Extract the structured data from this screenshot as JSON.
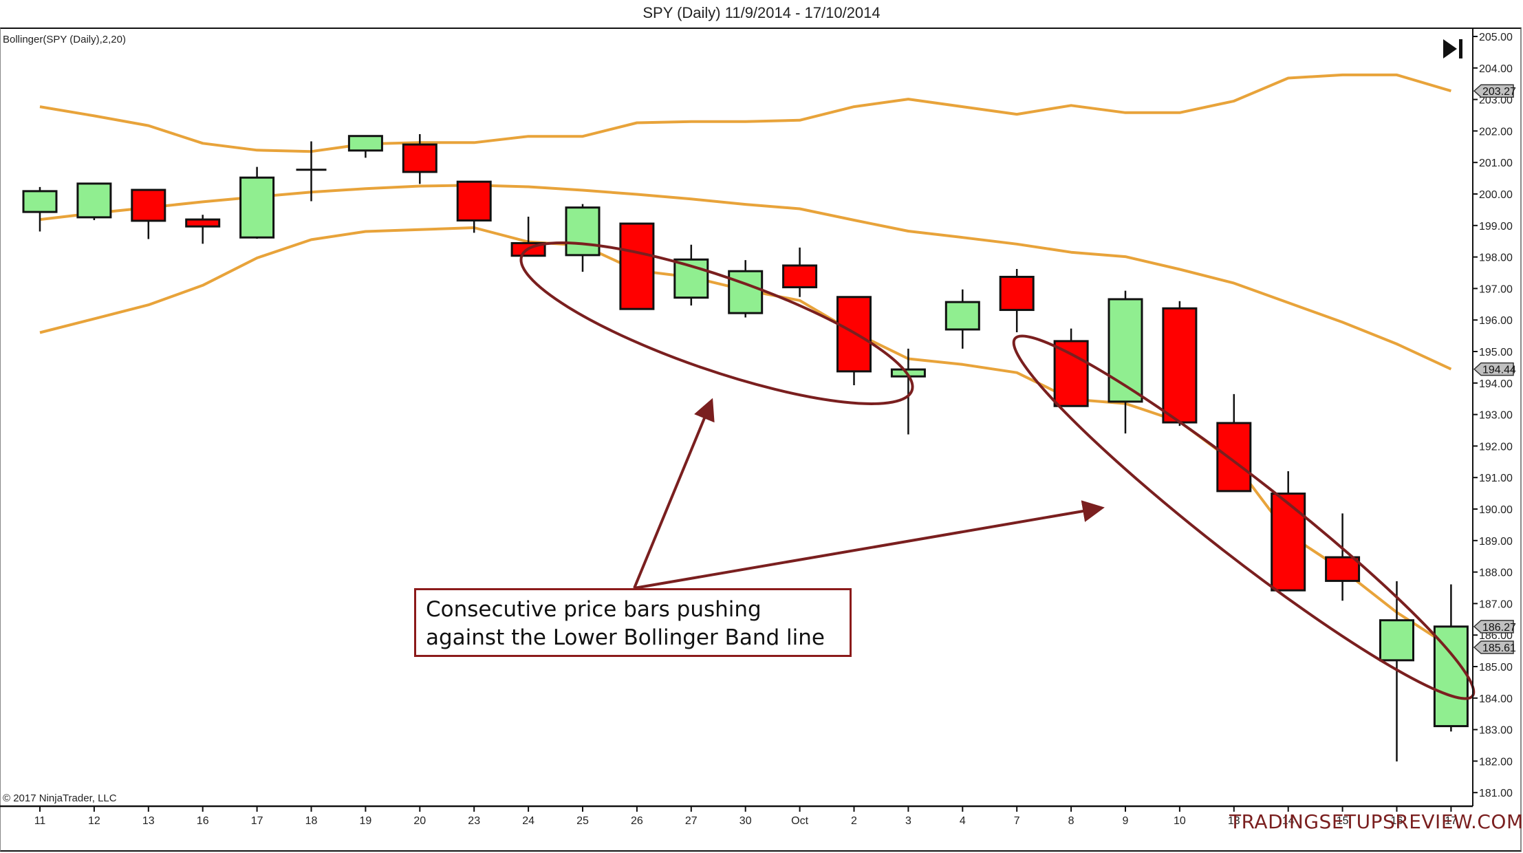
{
  "title": "SPY (Daily)  11/9/2014 - 17/10/2014",
  "indicator_label": "Bollinger(SPY (Daily),2,20)",
  "copyright": "© 2017 NinjaTrader, LLC",
  "watermark": "TRADINGSETUPSREVIEW.COM",
  "callout": {
    "line1": "Consecutive price bars pushing",
    "line2": "against the Lower Bollinger Band line"
  },
  "controls": {
    "go_to_end_icon": "skip-to-end-icon"
  },
  "colors": {
    "bull": "#90ee90",
    "bear": "#ff0000",
    "band": "#e8a33a",
    "annotation": "#7a1f1f",
    "price_tag_bg": "#c0c0c0"
  },
  "chart_data": {
    "type": "candlestick",
    "title": "SPY (Daily)  11/9/2014 - 17/10/2014",
    "indicator": "Bollinger(SPY (Daily),2,20)",
    "xlabel": "",
    "ylabel": "",
    "ylim": [
      180.6,
      205.3
    ],
    "y_ticks": [
      "205.00",
      "204.00",
      "203.00",
      "202.00",
      "201.00",
      "200.00",
      "199.00",
      "198.00",
      "197.00",
      "196.00",
      "195.00",
      "194.00",
      "193.00",
      "192.00",
      "191.00",
      "190.00",
      "189.00",
      "188.00",
      "187.00",
      "186.00",
      "185.00",
      "184.00",
      "183.00",
      "182.00",
      "181.00"
    ],
    "categories": [
      "11",
      "12",
      "13",
      "16",
      "17",
      "18",
      "19",
      "20",
      "23",
      "24",
      "25",
      "26",
      "27",
      "30",
      "Oct",
      "2",
      "3",
      "4",
      "7",
      "8",
      "9",
      "10",
      "13",
      "14",
      "15",
      "16",
      "17"
    ],
    "x_tick_labels": [
      "11",
      "12",
      "13",
      "16",
      "17",
      "18",
      "19",
      "20",
      "23",
      "24",
      "25",
      "26",
      "27",
      "30",
      "Oct",
      "2",
      "3",
      "4",
      "7",
      "8",
      "9",
      "10",
      "13",
      "14",
      "15",
      "16",
      "17"
    ],
    "grid": false,
    "legend": "none",
    "ohlc": [
      {
        "date": "11",
        "open": 199.43,
        "high": 200.22,
        "low": 198.81,
        "close": 200.09
      },
      {
        "date": "12",
        "open": 199.26,
        "high": 200.35,
        "low": 199.17,
        "close": 200.33
      },
      {
        "date": "13",
        "open": 200.13,
        "high": 200.13,
        "low": 198.57,
        "close": 199.15
      },
      {
        "date": "16",
        "open": 199.19,
        "high": 199.34,
        "low": 198.42,
        "close": 198.97
      },
      {
        "date": "17",
        "open": 198.62,
        "high": 200.86,
        "low": 198.58,
        "close": 200.52
      },
      {
        "date": "18",
        "open": 200.77,
        "high": 201.67,
        "low": 199.77,
        "close": 200.77
      },
      {
        "date": "19",
        "open": 201.38,
        "high": 201.84,
        "low": 201.15,
        "close": 201.84
      },
      {
        "date": "20",
        "open": 201.57,
        "high": 201.9,
        "low": 200.32,
        "close": 200.7
      },
      {
        "date": "23",
        "open": 200.39,
        "high": 200.39,
        "low": 198.77,
        "close": 199.16
      },
      {
        "date": "24",
        "open": 198.44,
        "high": 199.28,
        "low": 198.02,
        "close": 198.04
      },
      {
        "date": "25",
        "open": 198.06,
        "high": 199.68,
        "low": 197.53,
        "close": 199.57
      },
      {
        "date": "26",
        "open": 199.06,
        "high": 199.06,
        "low": 196.33,
        "close": 196.35
      },
      {
        "date": "27",
        "open": 196.71,
        "high": 198.39,
        "low": 196.46,
        "close": 197.92
      },
      {
        "date": "30",
        "open": 196.22,
        "high": 197.9,
        "low": 196.08,
        "close": 197.55
      },
      {
        "date": "Oct",
        "open": 197.73,
        "high": 198.3,
        "low": 196.73,
        "close": 197.04
      },
      {
        "date": "2",
        "open": 196.73,
        "high": 196.75,
        "low": 193.93,
        "close": 194.37
      },
      {
        "date": "3",
        "open": 194.21,
        "high": 195.09,
        "low": 192.37,
        "close": 194.43
      },
      {
        "date": "4",
        "open": 195.7,
        "high": 196.97,
        "low": 195.09,
        "close": 196.57
      },
      {
        "date": "7",
        "open": 197.37,
        "high": 197.62,
        "low": 195.61,
        "close": 196.32
      },
      {
        "date": "8",
        "open": 195.33,
        "high": 195.73,
        "low": 193.25,
        "close": 193.27
      },
      {
        "date": "9",
        "open": 193.41,
        "high": 196.93,
        "low": 192.4,
        "close": 196.66
      },
      {
        "date": "10",
        "open": 196.37,
        "high": 196.6,
        "low": 192.64,
        "close": 192.75
      },
      {
        "date": "13",
        "open": 192.73,
        "high": 193.65,
        "low": 190.55,
        "close": 190.57
      },
      {
        "date": "14",
        "open": 190.49,
        "high": 191.2,
        "low": 187.39,
        "close": 187.42
      },
      {
        "date": "15",
        "open": 188.47,
        "high": 189.86,
        "low": 187.09,
        "close": 187.72
      },
      {
        "date": "16",
        "open": 185.2,
        "high": 187.71,
        "low": 181.99,
        "close": 186.47
      },
      {
        "date": "17",
        "open": 183.11,
        "high": 187.61,
        "low": 182.94,
        "close": 186.27
      }
    ],
    "series": [
      {
        "name": "Upper Band",
        "values": [
          202.77,
          202.48,
          202.17,
          201.61,
          201.39,
          201.35,
          201.59,
          201.63,
          201.63,
          201.83,
          201.83,
          202.26,
          202.3,
          202.3,
          202.34,
          202.77,
          203.01,
          202.77,
          202.53,
          202.81,
          202.58,
          202.58,
          202.95,
          203.68,
          203.78,
          203.78,
          203.27
        ]
      },
      {
        "name": "Middle Band",
        "values": [
          199.19,
          199.39,
          199.57,
          199.75,
          199.91,
          200.06,
          200.17,
          200.25,
          200.28,
          200.23,
          200.12,
          199.99,
          199.84,
          199.67,
          199.53,
          199.17,
          198.82,
          198.62,
          198.41,
          198.15,
          198.01,
          197.61,
          197.17,
          196.55,
          195.93,
          195.24,
          194.44
        ]
      },
      {
        "name": "Lower Band",
        "values": [
          195.6,
          196.04,
          196.48,
          197.1,
          197.97,
          198.55,
          198.81,
          198.87,
          198.93,
          198.48,
          198.37,
          197.57,
          197.36,
          196.95,
          196.62,
          195.61,
          194.77,
          194.59,
          194.33,
          193.49,
          193.35,
          192.77,
          191.49,
          189.2,
          188.07,
          186.72,
          185.61
        ]
      }
    ],
    "price_markers": [
      {
        "label": "203.27",
        "value": 203.27,
        "series": "Upper Band"
      },
      {
        "label": "194.44",
        "value": 194.44,
        "series": "Middle Band"
      },
      {
        "label": "186.27",
        "value": 186.27,
        "series": "Close"
      },
      {
        "label": "185.61",
        "value": 185.61,
        "series": "Lower Band"
      }
    ],
    "annotations": [
      {
        "type": "ellipse",
        "around": [
          "24",
          "25",
          "26",
          "27",
          "30",
          "Oct",
          "2",
          "3"
        ]
      },
      {
        "type": "ellipse",
        "around": [
          "8",
          "9",
          "10",
          "13",
          "14",
          "15",
          "16",
          "17"
        ]
      },
      {
        "type": "text_box",
        "text": "Consecutive price bars pushing against the Lower Bollinger Band line"
      },
      {
        "type": "arrow",
        "from": "text_box",
        "to": "ellipse 1"
      },
      {
        "type": "arrow",
        "from": "text_box",
        "to": "ellipse 2"
      }
    ]
  }
}
